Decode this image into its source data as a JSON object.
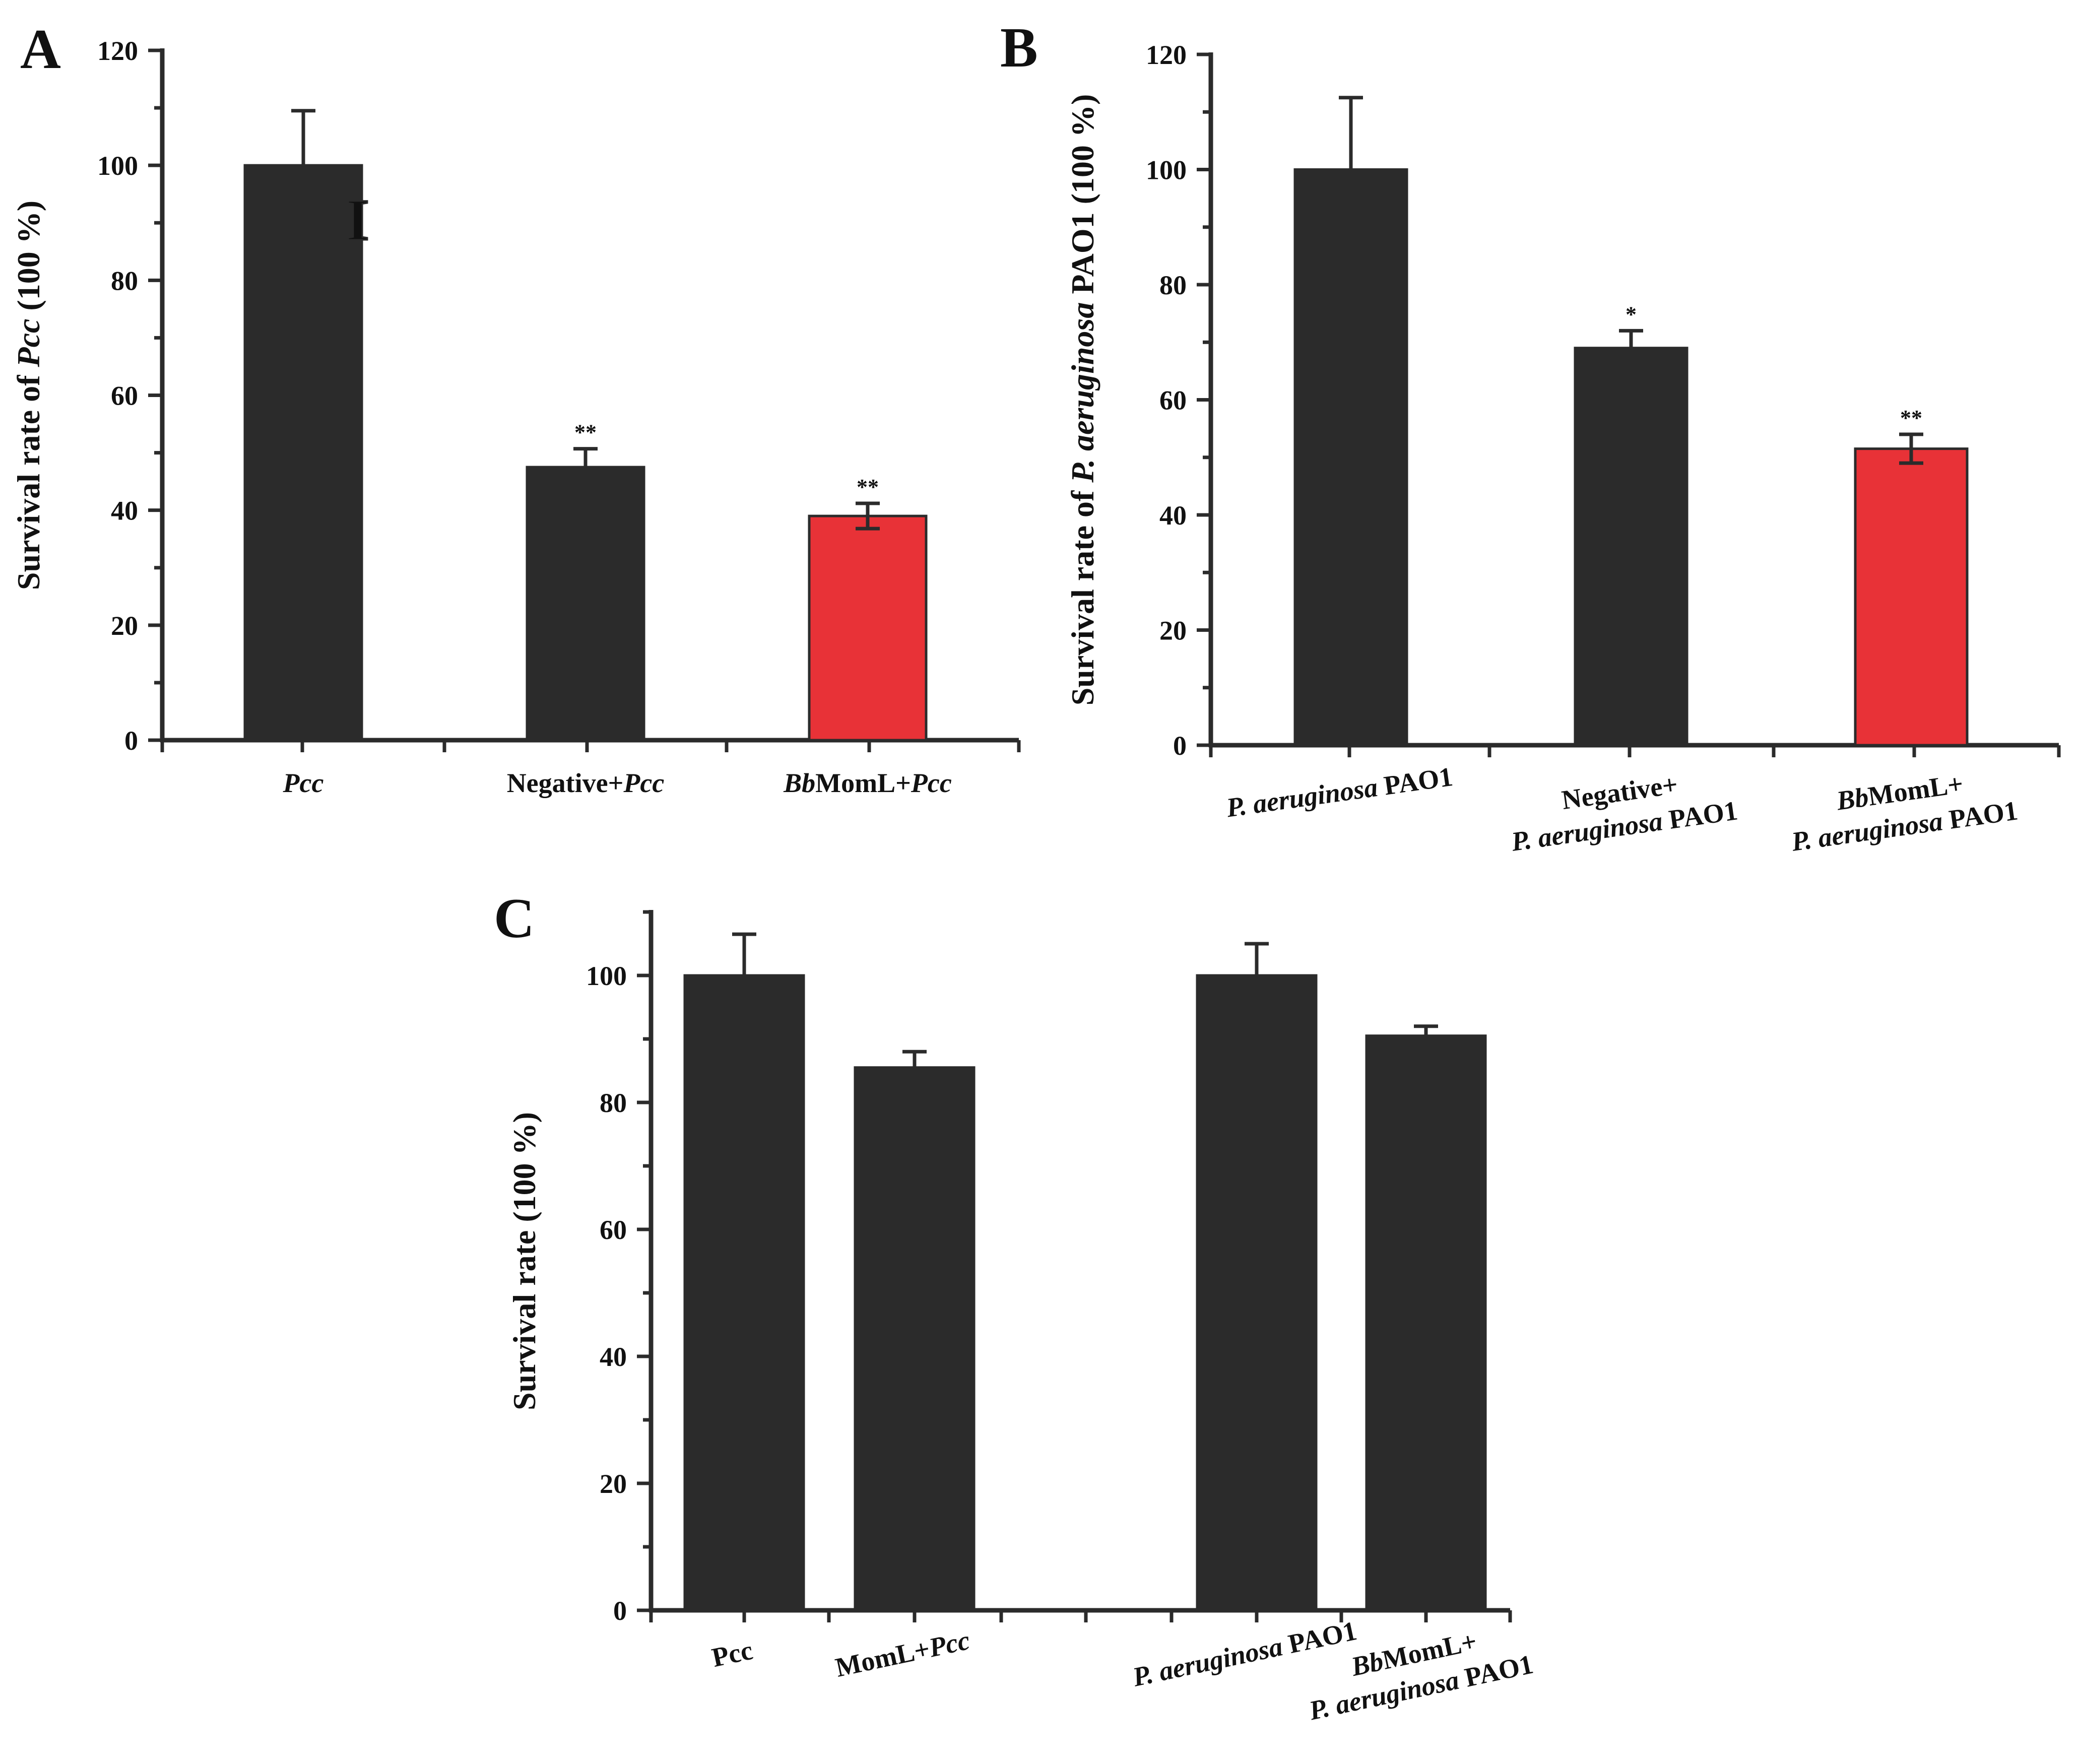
{
  "colors": {
    "dark": "#2b2b2b",
    "highlight": "#e83237"
  },
  "chart_data": [
    {
      "panel": "A",
      "type": "bar",
      "ylabel": [
        {
          "t": "Survival rate of "
        },
        {
          "t": "Pcc",
          "i": true
        },
        {
          "t": " (100 %)"
        }
      ],
      "ylim": [
        0,
        120
      ],
      "yticks": [
        0,
        20,
        40,
        60,
        80,
        100,
        120
      ],
      "categories": [
        [
          [
            {
              "t": "Pcc",
              "i": true
            }
          ]
        ],
        [
          [
            {
              "t": "Negative+"
            },
            {
              "t": "Pcc",
              "i": true
            }
          ]
        ],
        [
          [
            {
              "t": "Bb",
              "i": true
            },
            {
              "t": "MomL+"
            },
            {
              "t": "Pcc",
              "i": true
            }
          ]
        ]
      ],
      "values": [
        100,
        47.5,
        39
      ],
      "errors": [
        9.5,
        3.2,
        2.2
      ],
      "significance": [
        "",
        "**",
        "**"
      ],
      "bar_colors": [
        "dark",
        "dark",
        "highlight"
      ],
      "cursor_glyph": "I"
    },
    {
      "panel": "B",
      "type": "bar",
      "ylabel": [
        {
          "t": "Survival rate of "
        },
        {
          "t": "P. aeruginosa",
          "i": true
        },
        {
          "t": " PAO1 (100 %)"
        }
      ],
      "ylim": [
        0,
        120
      ],
      "yticks": [
        0,
        20,
        40,
        60,
        80,
        100,
        120
      ],
      "categories": [
        [
          [
            {
              "t": "P. aeruginosa",
              "i": true
            },
            {
              "t": " PAO1"
            }
          ]
        ],
        [
          [
            {
              "t": "Negative+"
            }
          ],
          [
            {
              "t": "P. aeruginosa",
              "i": true
            },
            {
              "t": " PAO1"
            }
          ]
        ],
        [
          [
            {
              "t": "Bb",
              "i": true
            },
            {
              "t": "MomL+"
            }
          ],
          [
            {
              "t": "P. aeruginosa",
              "i": true
            },
            {
              "t": " PAO1"
            }
          ]
        ]
      ],
      "values": [
        100,
        69,
        51.5
      ],
      "errors": [
        12.5,
        3,
        2.5
      ],
      "significance": [
        "",
        "*",
        "**"
      ],
      "bar_colors": [
        "dark",
        "dark",
        "highlight"
      ]
    },
    {
      "panel": "C",
      "type": "bar",
      "ylabel": [
        {
          "t": "Survival rate (100 %)"
        }
      ],
      "ylim": [
        0,
        110
      ],
      "yticks": [
        0,
        20,
        40,
        60,
        80,
        100
      ],
      "categories": [
        [
          [
            {
              "t": "Pcc"
            }
          ]
        ],
        [
          [
            {
              "t": "MomL+"
            },
            {
              "t": "Pcc",
              "i": true
            }
          ]
        ],
        [
          [
            {
              "t": "P. aeruginosa",
              "i": true
            },
            {
              "t": " PAO1"
            }
          ]
        ],
        [
          [
            {
              "t": "Bb",
              "i": true
            },
            {
              "t": "MomL+"
            }
          ],
          [
            {
              "t": "P. aeruginosa",
              "i": true
            },
            {
              "t": " PAO1"
            }
          ]
        ]
      ],
      "values": [
        100,
        85.5,
        100,
        90.5
      ],
      "errors": [
        6.5,
        2.5,
        5,
        1.5
      ],
      "significance": [
        "",
        "",
        "",
        ""
      ],
      "bar_colors": [
        "dark",
        "dark",
        "dark",
        "dark"
      ]
    }
  ]
}
